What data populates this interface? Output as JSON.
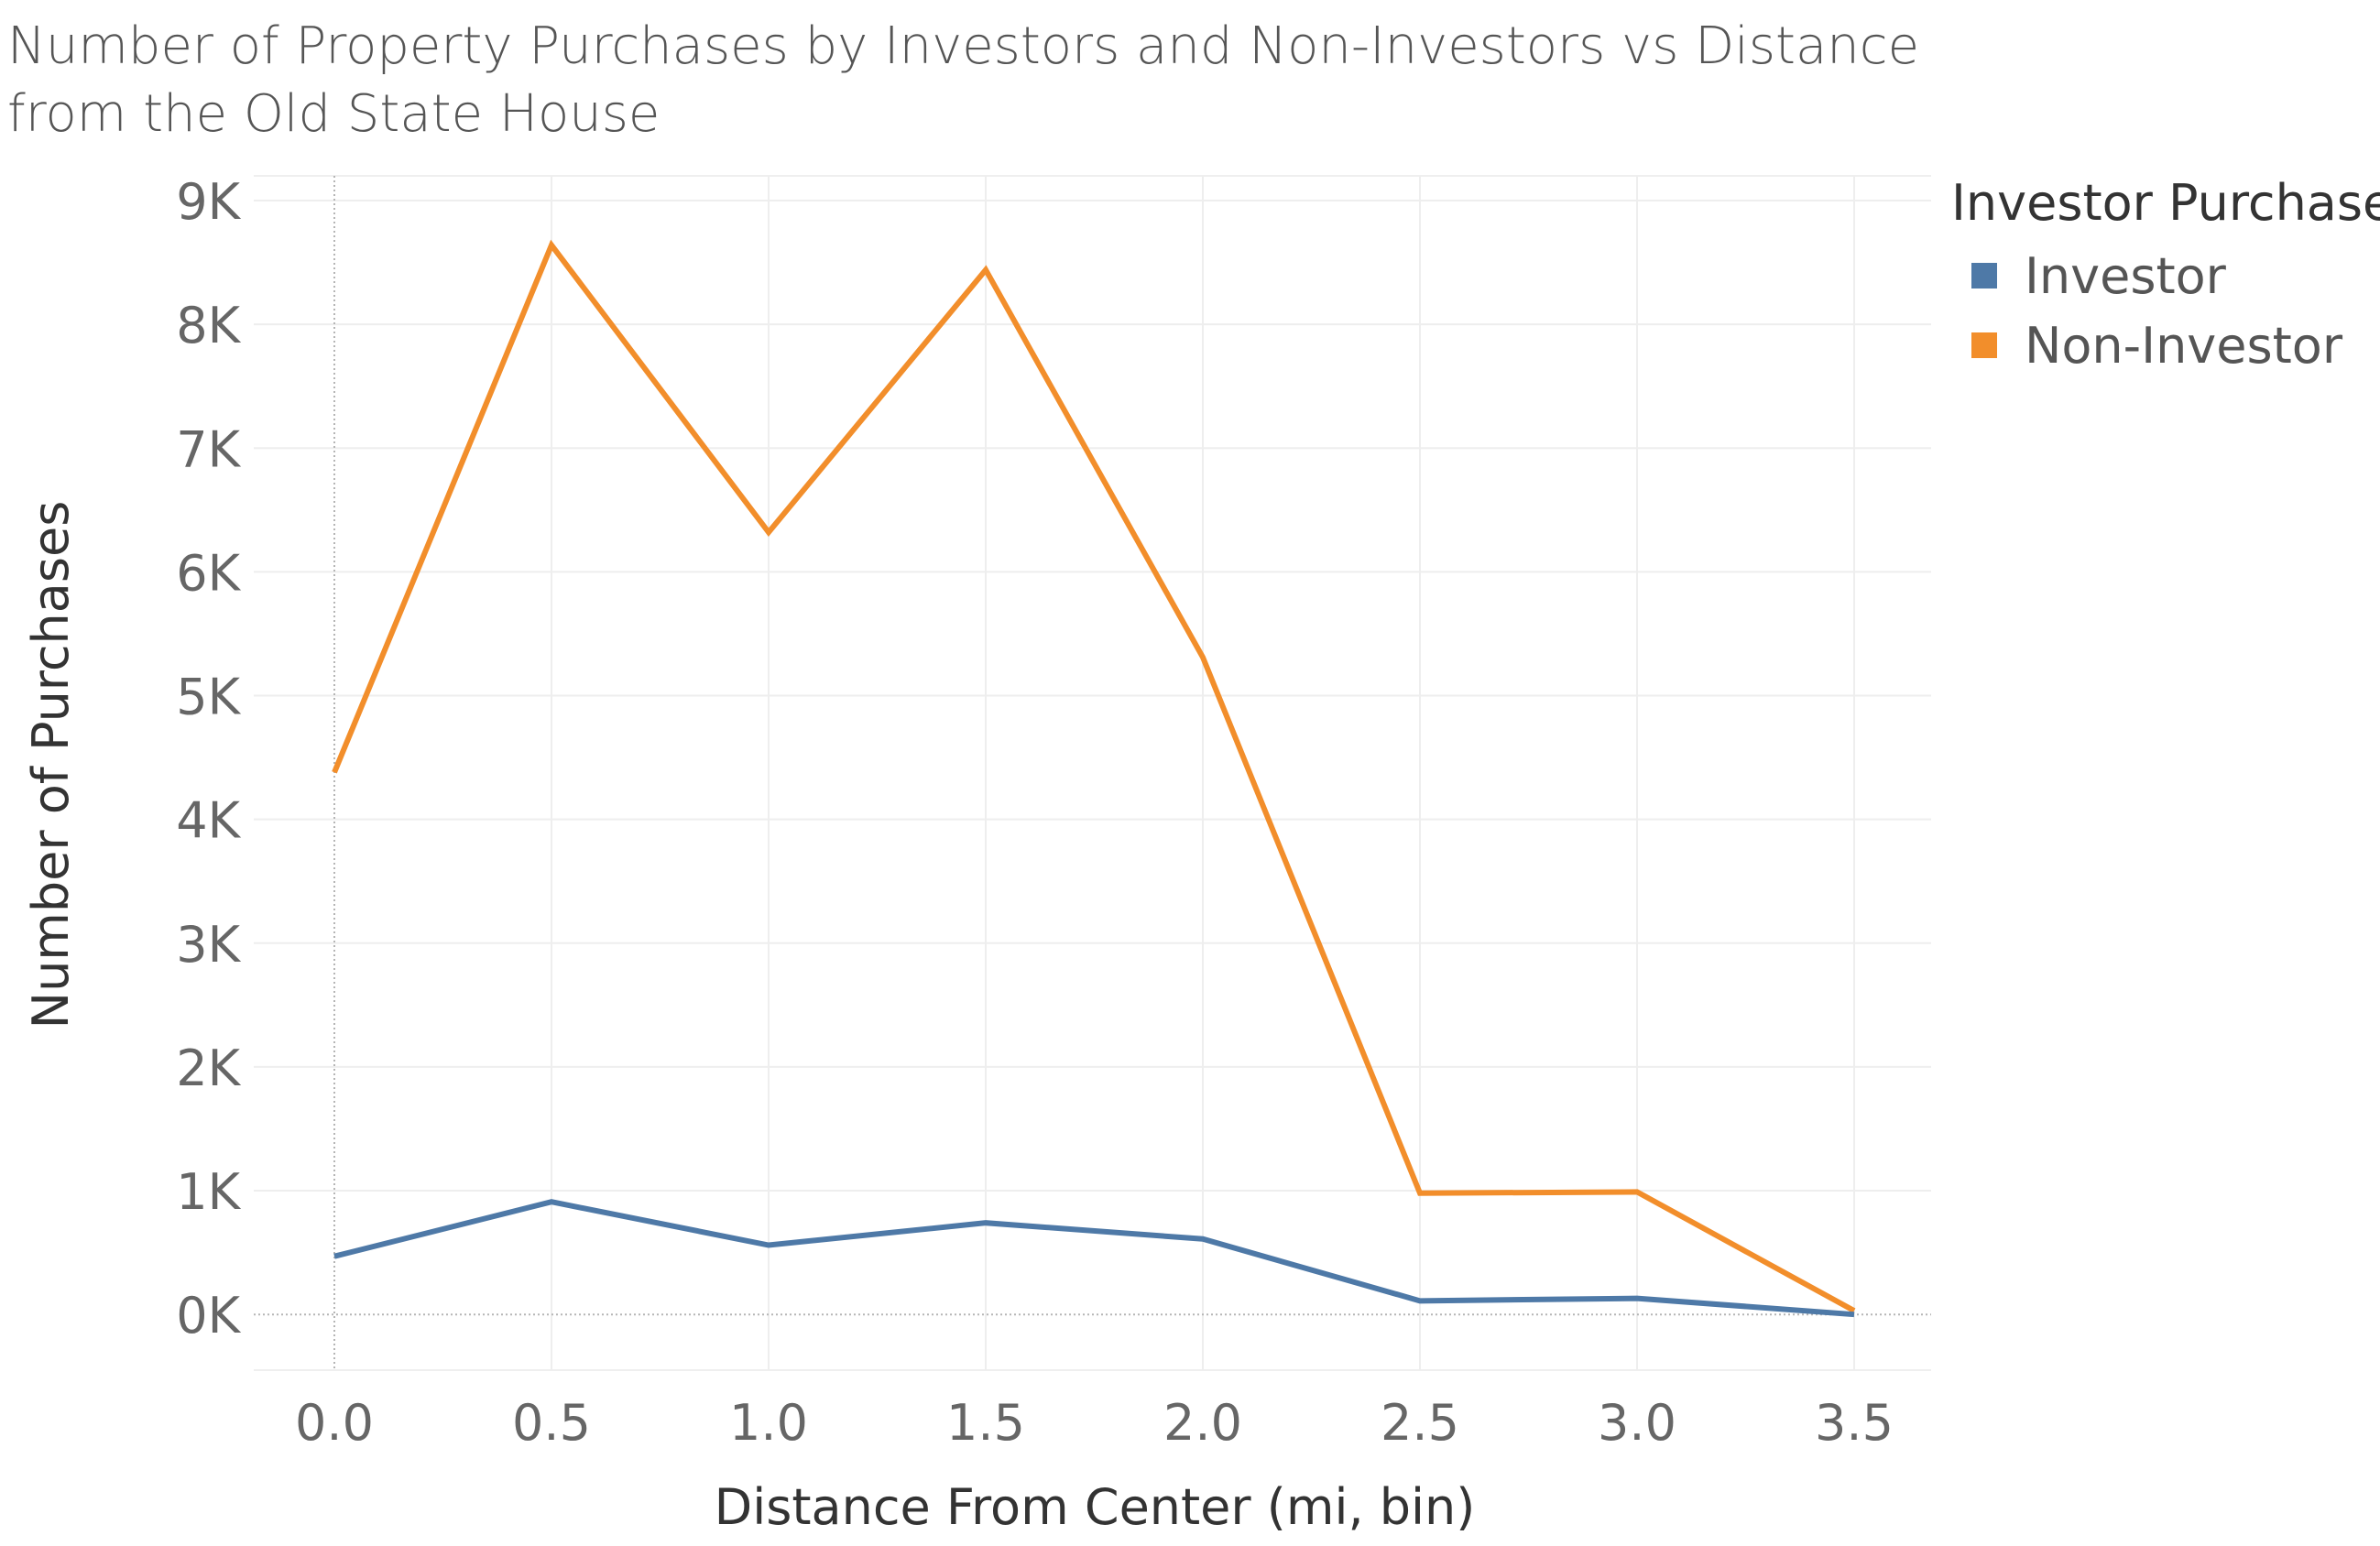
{
  "chart_data": {
    "type": "line",
    "title": "Number of Property Purchases by Investors and Non-Investors vs Distance from the Old State House",
    "xlabel": "Distance From Center (mi, bin)",
    "ylabel": "Number of Purchases",
    "x": [
      0.0,
      0.5,
      1.0,
      1.5,
      2.0,
      2.5,
      3.0,
      3.5
    ],
    "x_tick_labels": [
      "0.0",
      "0.5",
      "1.0",
      "1.5",
      "2.0",
      "2.5",
      "3.0",
      "3.5"
    ],
    "y_ticks": [
      0,
      1000,
      2000,
      3000,
      4000,
      5000,
      6000,
      7000,
      8000,
      9000
    ],
    "y_tick_labels": [
      "0K",
      "1K",
      "2K",
      "3K",
      "4K",
      "5K",
      "6K",
      "7K",
      "8K",
      "9K"
    ],
    "xlim": [
      -0.18,
      3.5
    ],
    "ylim": [
      -450,
      9200
    ],
    "grid": true,
    "legend_title": "Investor Purchase",
    "legend_position": "top-right",
    "series": [
      {
        "name": "Investor",
        "color": "#4e79a7",
        "values": [
          470,
          910,
          560,
          740,
          610,
          110,
          130,
          0
        ]
      },
      {
        "name": "Non-Investor",
        "color": "#f28e2b",
        "values": [
          4380,
          8640,
          6320,
          8440,
          5310,
          980,
          990,
          30
        ]
      }
    ]
  }
}
